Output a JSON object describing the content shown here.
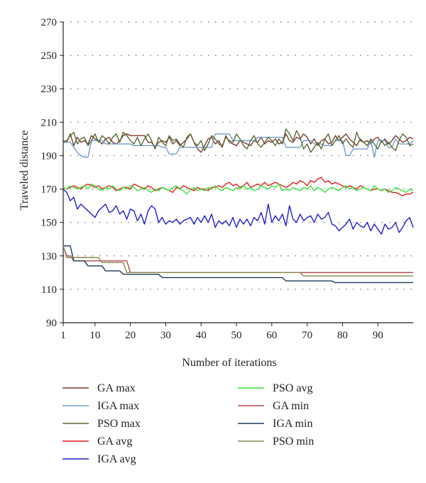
{
  "chart_data": {
    "type": "line",
    "xlabel": "Number of iterations",
    "ylabel": "Traveled distance",
    "xlim": [
      1,
      100
    ],
    "ylim": [
      90,
      270
    ],
    "xticks": [
      1,
      10,
      20,
      30,
      40,
      50,
      60,
      70,
      80,
      90
    ],
    "yticks": [
      90,
      110,
      130,
      150,
      170,
      190,
      210,
      230,
      250,
      270
    ],
    "grid": "dotted horizontal",
    "legend_position": "bottom",
    "series": [
      {
        "name": "GA max",
        "color": "#7a3b2e",
        "values": [
          199,
          198,
          203,
          196,
          201,
          198,
          199,
          197,
          202,
          200,
          199,
          197,
          200,
          201,
          198,
          197,
          199,
          202,
          203,
          202,
          202,
          202,
          202,
          202,
          198,
          198,
          195,
          198,
          199,
          198,
          201,
          197,
          199,
          196,
          198,
          200,
          203,
          198,
          194,
          192,
          196,
          200,
          201,
          197,
          199,
          195,
          202,
          198,
          197,
          196,
          199,
          198,
          197,
          196,
          199,
          198,
          201,
          197,
          199,
          198,
          200,
          197,
          198,
          203,
          199,
          198,
          201,
          200,
          203,
          201,
          197,
          200,
          196,
          199,
          200,
          197,
          198,
          202,
          199,
          201,
          203,
          200,
          198,
          196,
          200,
          198,
          199,
          197,
          200,
          201,
          198,
          200,
          197,
          199,
          202,
          200,
          198,
          199,
          201,
          200
        ]
      },
      {
        "name": "IGA max",
        "color": "#6f9fcc",
        "values": [
          198,
          198,
          198,
          195,
          192,
          190,
          189,
          189,
          199,
          199,
          199,
          199,
          197,
          197,
          197,
          197,
          197,
          197,
          197,
          197,
          196,
          196,
          196,
          196,
          196,
          196,
          196,
          196,
          195,
          195,
          191,
          191,
          191,
          195,
          195,
          195,
          195,
          195,
          195,
          195,
          195,
          195,
          195,
          203,
          203,
          203,
          203,
          203,
          199,
          199,
          199,
          199,
          199,
          199,
          199,
          201,
          201,
          201,
          201,
          201,
          201,
          201,
          201,
          195,
          195,
          195,
          195,
          195,
          199,
          199,
          199,
          197,
          197,
          197,
          196,
          196,
          196,
          199,
          199,
          199,
          190,
          190,
          194,
          194,
          194,
          194,
          194,
          199,
          189,
          199,
          199,
          199,
          195,
          195,
          200,
          197,
          197,
          197,
          197,
          199
        ]
      },
      {
        "name": "PSO max",
        "color": "#5a6a34",
        "values": [
          198,
          199,
          202,
          204,
          197,
          200,
          201,
          196,
          199,
          203,
          198,
          202,
          200,
          197,
          201,
          203,
          198,
          204,
          202,
          199,
          197,
          201,
          196,
          200,
          203,
          199,
          194,
          201,
          198,
          196,
          202,
          199,
          200,
          197,
          195,
          201,
          203,
          198,
          196,
          199,
          193,
          197,
          202,
          200,
          197,
          196,
          201,
          199,
          198,
          203,
          200,
          196,
          194,
          199,
          202,
          197,
          195,
          198,
          201,
          199,
          196,
          200,
          197,
          206,
          203,
          199,
          205,
          201,
          194,
          197,
          192,
          195,
          198,
          194,
          200,
          203,
          196,
          199,
          202,
          197,
          200,
          197,
          195,
          204,
          199,
          198,
          196,
          200,
          197,
          194,
          199,
          196,
          198,
          195,
          193,
          199,
          203,
          201,
          196,
          197
        ]
      },
      {
        "name": "GA avg",
        "color": "#e31a1c",
        "values": [
          171,
          170,
          171,
          172,
          171,
          170,
          172,
          173,
          172,
          171,
          172,
          170,
          171,
          172,
          171,
          169,
          170,
          171,
          171,
          170,
          173,
          172,
          171,
          170,
          172,
          171,
          169,
          170,
          171,
          170,
          169,
          168,
          171,
          170,
          172,
          171,
          170,
          169,
          171,
          170,
          170,
          169,
          171,
          171,
          172,
          171,
          173,
          174,
          172,
          173,
          171,
          172,
          174,
          171,
          172,
          173,
          172,
          174,
          172,
          173,
          174,
          173,
          172,
          171,
          172,
          174,
          173,
          175,
          174,
          172,
          175,
          174,
          176,
          177,
          174,
          175,
          173,
          174,
          173,
          172,
          171,
          172,
          171,
          170,
          172,
          171,
          170,
          169,
          170,
          170,
          169,
          170,
          169,
          168,
          168,
          167,
          166,
          167,
          167,
          168
        ]
      },
      {
        "name": "IGA avg",
        "color": "#1f1fcf",
        "values": [
          170,
          168,
          163,
          165,
          158,
          161,
          159,
          157,
          155,
          153,
          157,
          159,
          161,
          156,
          157,
          160,
          155,
          157,
          152,
          158,
          157,
          151,
          155,
          149,
          157,
          160,
          158,
          150,
          153,
          149,
          151,
          150,
          152,
          149,
          151,
          152,
          153,
          149,
          153,
          150,
          154,
          150,
          155,
          147,
          151,
          149,
          151,
          148,
          153,
          147,
          152,
          149,
          152,
          148,
          153,
          151,
          156,
          149,
          161,
          150,
          154,
          151,
          155,
          148,
          160,
          152,
          150,
          155,
          151,
          153,
          154,
          150,
          155,
          152,
          153,
          156,
          149,
          148,
          145,
          147,
          149,
          152,
          146,
          150,
          148,
          147,
          150,
          145,
          149,
          146,
          143,
          149,
          146,
          147,
          150,
          144,
          147,
          151,
          153,
          147
        ]
      },
      {
        "name": "PSO avg",
        "color": "#39e33a",
        "values": [
          171,
          170,
          172,
          171,
          170,
          171,
          172,
          170,
          173,
          172,
          170,
          169,
          171,
          170,
          172,
          170,
          169,
          171,
          170,
          172,
          171,
          169,
          170,
          171,
          169,
          168,
          170,
          169,
          171,
          170,
          169,
          171,
          172,
          170,
          169,
          167,
          170,
          171,
          169,
          170,
          169,
          171,
          170,
          172,
          170,
          169,
          171,
          170,
          169,
          171,
          170,
          172,
          170,
          171,
          169,
          170,
          172,
          171,
          170,
          172,
          171,
          173,
          169,
          170,
          169,
          171,
          170,
          169,
          171,
          170,
          172,
          169,
          171,
          170,
          168,
          170,
          171,
          170,
          169,
          171,
          172,
          170,
          171,
          169,
          170,
          171,
          170,
          169,
          172,
          170,
          169,
          170,
          168,
          169,
          171,
          170,
          169,
          168,
          170,
          169
        ]
      },
      {
        "name": "GA min",
        "color": "#b0474a",
        "values": [
          136,
          130,
          130,
          127,
          127,
          127,
          127,
          127,
          127,
          127,
          127,
          127,
          127,
          127,
          127,
          127,
          127,
          127,
          127,
          120,
          120,
          120,
          120,
          120,
          120,
          120,
          120,
          120,
          120,
          120,
          120,
          120,
          120,
          120,
          120,
          120,
          120,
          120,
          120,
          120,
          120,
          120,
          120,
          120,
          120,
          120,
          120,
          120,
          120,
          120,
          120,
          120,
          120,
          120,
          120,
          120,
          120,
          120,
          120,
          120,
          120,
          120,
          120,
          120,
          120,
          120,
          120,
          120,
          120,
          120,
          120,
          120,
          120,
          120,
          120,
          120,
          120,
          120,
          120,
          120,
          120,
          120,
          120,
          120,
          120,
          120,
          120,
          120,
          120,
          120,
          120,
          120,
          120,
          120,
          120,
          120,
          120,
          120,
          120,
          120
        ]
      },
      {
        "name": "IGA min",
        "color": "#1c3a5e",
        "values": [
          136,
          136,
          136,
          127,
          127,
          127,
          127,
          124,
          124,
          124,
          124,
          124,
          121,
          121,
          121,
          121,
          121,
          119,
          119,
          119,
          119,
          119,
          119,
          119,
          119,
          119,
          119,
          119,
          117,
          117,
          117,
          117,
          117,
          117,
          117,
          117,
          117,
          117,
          117,
          117,
          117,
          117,
          117,
          117,
          117,
          117,
          117,
          117,
          117,
          117,
          117,
          117,
          117,
          117,
          117,
          117,
          117,
          117,
          117,
          117,
          117,
          117,
          117,
          115,
          115,
          115,
          115,
          115,
          115,
          115,
          115,
          115,
          115,
          115,
          115,
          115,
          115,
          114,
          114,
          114,
          114,
          114,
          114,
          114,
          114,
          114,
          114,
          114,
          114,
          114,
          114,
          114,
          114,
          114,
          114,
          114,
          114,
          114,
          114,
          114
        ]
      },
      {
        "name": "PSO min",
        "color": "#8a8a48",
        "values": [
          136,
          129,
          129,
          129,
          129,
          129,
          129,
          129,
          129,
          129,
          129,
          126,
          126,
          126,
          126,
          126,
          126,
          126,
          120,
          120,
          120,
          120,
          120,
          120,
          120,
          120,
          120,
          120,
          120,
          120,
          120,
          120,
          120,
          120,
          120,
          120,
          120,
          120,
          120,
          120,
          120,
          120,
          120,
          120,
          120,
          120,
          120,
          120,
          120,
          120,
          120,
          120,
          120,
          120,
          120,
          120,
          120,
          120,
          120,
          120,
          120,
          120,
          120,
          120,
          120,
          120,
          120,
          120,
          118,
          118,
          118,
          118,
          118,
          118,
          118,
          118,
          118,
          118,
          118,
          118,
          118,
          118,
          118,
          118,
          118,
          118,
          118,
          118,
          118,
          118,
          118,
          118,
          118,
          118,
          118,
          118,
          118,
          118,
          118,
          118
        ]
      }
    ]
  }
}
